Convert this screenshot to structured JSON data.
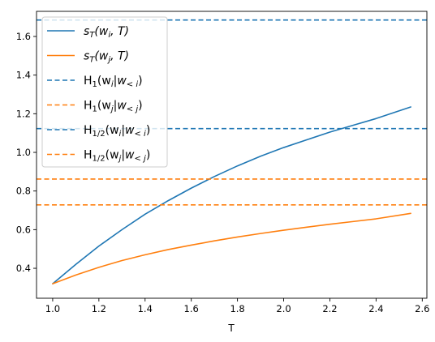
{
  "chart_data": {
    "type": "line",
    "title": "",
    "xlabel": "T",
    "ylabel": "",
    "xlim": [
      0.93,
      2.62
    ],
    "ylim": [
      0.245,
      1.73
    ],
    "grid": false,
    "legend_position": "top-left",
    "x_ticks": [
      "1.0",
      "1.2",
      "1.4",
      "1.6",
      "1.8",
      "2.0",
      "2.2",
      "2.4",
      "2.6"
    ],
    "y_ticks": [
      "0.4",
      "0.6",
      "0.8",
      "1.0",
      "1.2",
      "1.4",
      "1.6"
    ],
    "series": [
      {
        "name": "s_T(w_i, T)",
        "legend": {
          "base": "s",
          "sub": "T",
          "args": "(w",
          "args_sub": "i",
          "tail": ", T)"
        },
        "style": "solid",
        "color": "#1f77b4",
        "x": [
          1.0,
          1.1,
          1.2,
          1.3,
          1.4,
          1.5,
          1.6,
          1.7,
          1.8,
          1.9,
          2.0,
          2.1,
          2.2,
          2.3,
          2.4,
          2.55
        ],
        "y": [
          0.32,
          0.42,
          0.515,
          0.6,
          0.68,
          0.75,
          0.815,
          0.875,
          0.93,
          0.98,
          1.025,
          1.065,
          1.105,
          1.14,
          1.175,
          1.235
        ]
      },
      {
        "name": "s_T(w_j, T)",
        "legend": {
          "base": "s",
          "sub": "T",
          "args": "(w",
          "args_sub": "j",
          "tail": ", T)"
        },
        "style": "solid",
        "color": "#ff7f0e",
        "x": [
          1.0,
          1.1,
          1.2,
          1.3,
          1.4,
          1.5,
          1.6,
          1.7,
          1.8,
          1.9,
          2.0,
          2.1,
          2.2,
          2.3,
          2.4,
          2.55
        ],
        "y": [
          0.32,
          0.365,
          0.405,
          0.44,
          0.47,
          0.497,
          0.52,
          0.542,
          0.562,
          0.58,
          0.597,
          0.613,
          0.628,
          0.642,
          0.656,
          0.684
        ]
      },
      {
        "name": "H_1(w_i|w_<i)",
        "legend": {
          "base": "H",
          "sub": "1",
          "args": "(w",
          "args_sub": "i",
          "mid": "|w",
          "mid_sub": "< i",
          "tail": ")"
        },
        "style": "dashed",
        "color": "#1f77b4",
        "y_const": 1.685
      },
      {
        "name": "H_1(w_j|w_<j)",
        "legend": {
          "base": "H",
          "sub": "1",
          "args": "(w",
          "args_sub": "j",
          "mid": "|w",
          "mid_sub": "< j",
          "tail": ")"
        },
        "style": "dashed",
        "color": "#ff7f0e",
        "y_const": 0.728
      },
      {
        "name": "H_1/2(w_i|w_<i)",
        "legend": {
          "base": "H",
          "sub": "1/2",
          "args": "(w",
          "args_sub": "i",
          "mid": "|w",
          "mid_sub": "< i",
          "tail": ")"
        },
        "style": "dashed",
        "color": "#1f77b4",
        "y_const": 1.123
      },
      {
        "name": "H_1/2(w_j|w_<j)",
        "legend": {
          "base": "H",
          "sub": "1/2",
          "args": "(w",
          "args_sub": "j",
          "mid": "|w",
          "mid_sub": "< j",
          "tail": ")"
        },
        "style": "dashed",
        "color": "#ff7f0e",
        "y_const": 0.862
      }
    ]
  }
}
